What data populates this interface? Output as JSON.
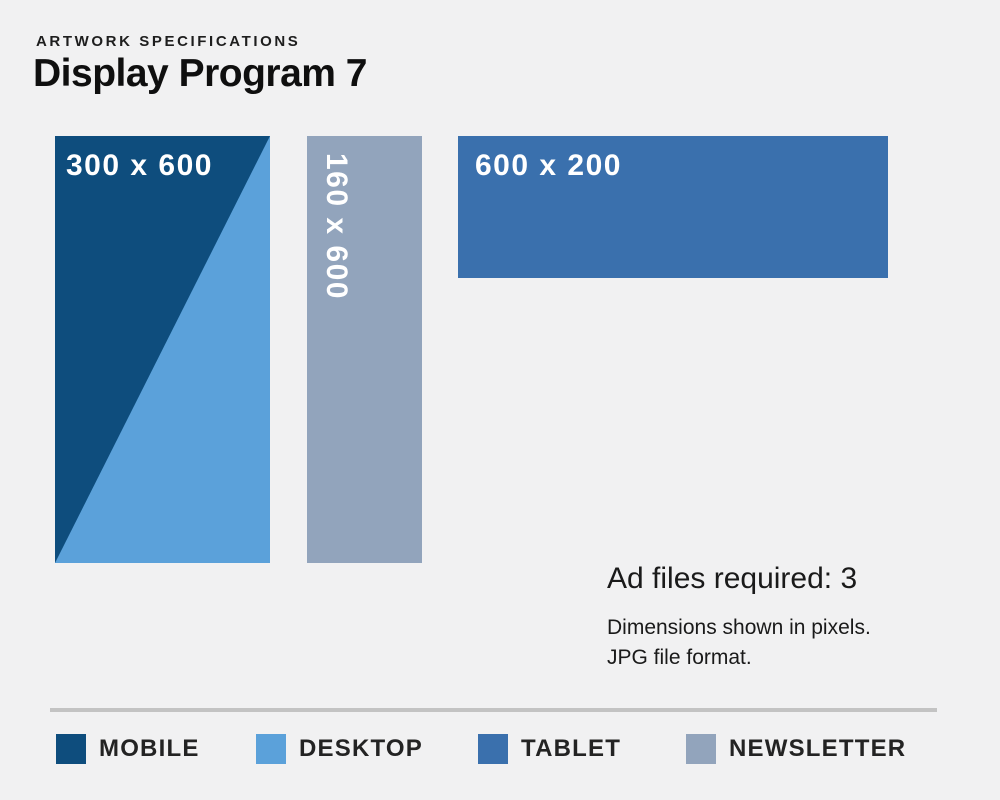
{
  "colors": {
    "background": "#f1f1f2",
    "mobile": "#0e4d7d",
    "desktop": "#5ba1da",
    "tablet": "#3a70ad",
    "newsletter": "#92a4bc",
    "divider": "#c3c3c3",
    "text": "#1a1a1a"
  },
  "header": {
    "eyebrow": "ARTWORK SPECIFICATIONS",
    "title": "Display Program 7"
  },
  "ads": {
    "mobile_desktop": {
      "label": "300 x 600"
    },
    "newsletter": {
      "label": "160 x 600"
    },
    "tablet": {
      "label": "600 x 200"
    }
  },
  "info": {
    "headline": "Ad files required: 3",
    "line1": "Dimensions shown in pixels.",
    "line2": "JPG file format."
  },
  "legend": {
    "items": [
      {
        "label": "MOBILE",
        "color": "#0e4d7d"
      },
      {
        "label": "DESKTOP",
        "color": "#5ba1da"
      },
      {
        "label": "TABLET",
        "color": "#3a70ad"
      },
      {
        "label": "NEWSLETTER",
        "color": "#92a4bc"
      }
    ]
  }
}
